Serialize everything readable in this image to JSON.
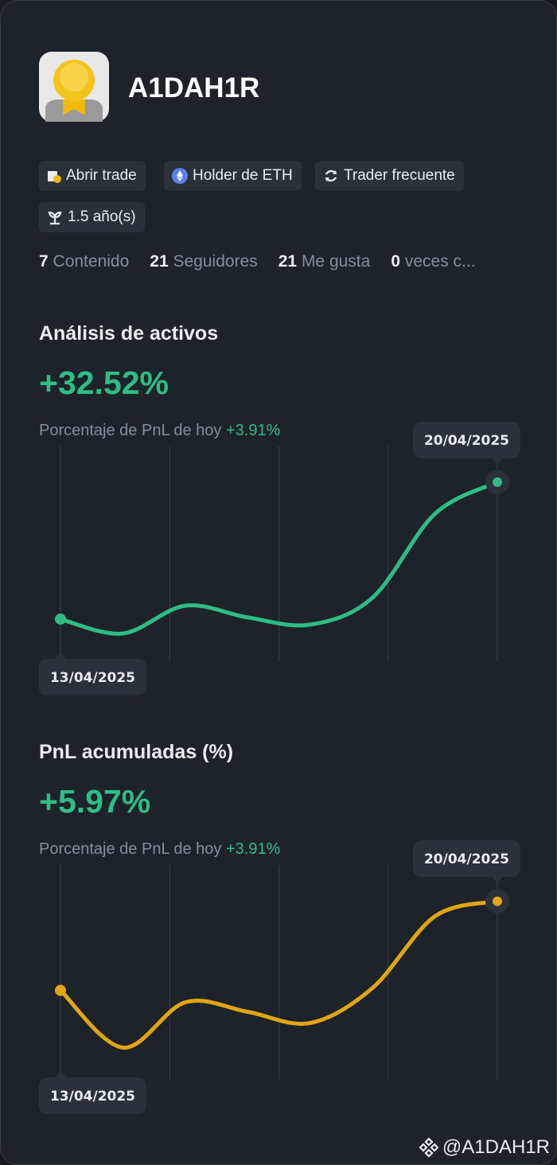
{
  "profile": {
    "name": "A1DAH1R",
    "badges": [
      "Abrir trade",
      "Holder de ETH",
      "Trader frecuente",
      "1.5 año(s)"
    ],
    "stats": [
      {
        "value": 7,
        "label": "Contenido"
      },
      {
        "value": 21,
        "label": "Seguidores"
      },
      {
        "value": 21,
        "label": "Me gusta"
      },
      {
        "value": 0,
        "label": "veces c..."
      }
    ]
  },
  "chart_data": [
    {
      "type": "line",
      "title": "Análisis de activos",
      "headline": "+32.52%",
      "subtitle": "Porcentaje de PnL de hoy",
      "subtitle_value": "+3.91%",
      "categories": [
        "13/04/2025",
        null,
        null,
        null,
        null,
        null,
        null,
        "20/04/2025"
      ],
      "series": [
        {
          "color": "#2ebd85",
          "values": [
            0,
            -3.4,
            3.2,
            0.4,
            -1.3,
            5.1,
            25,
            32.52
          ]
        }
      ],
      "ylim": [
        -10,
        41
      ]
    },
    {
      "type": "line",
      "title": "PnL acumuladas (%)",
      "headline": "+5.97%",
      "subtitle": "Porcentaje de PnL de hoy",
      "subtitle_value": "+3.91%",
      "categories": [
        "13/04/2025",
        null,
        null,
        null,
        null,
        null,
        null,
        "20/04/2025"
      ],
      "series": [
        {
          "color": "#e0a612",
          "values": [
            0,
            -3.84,
            -0.8,
            -1.44,
            -2.19,
            0.16,
            4.96,
            5.97
          ]
        }
      ],
      "ylim": [
        -6,
        8.4
      ]
    }
  ],
  "footer": "@A1DAH1R"
}
